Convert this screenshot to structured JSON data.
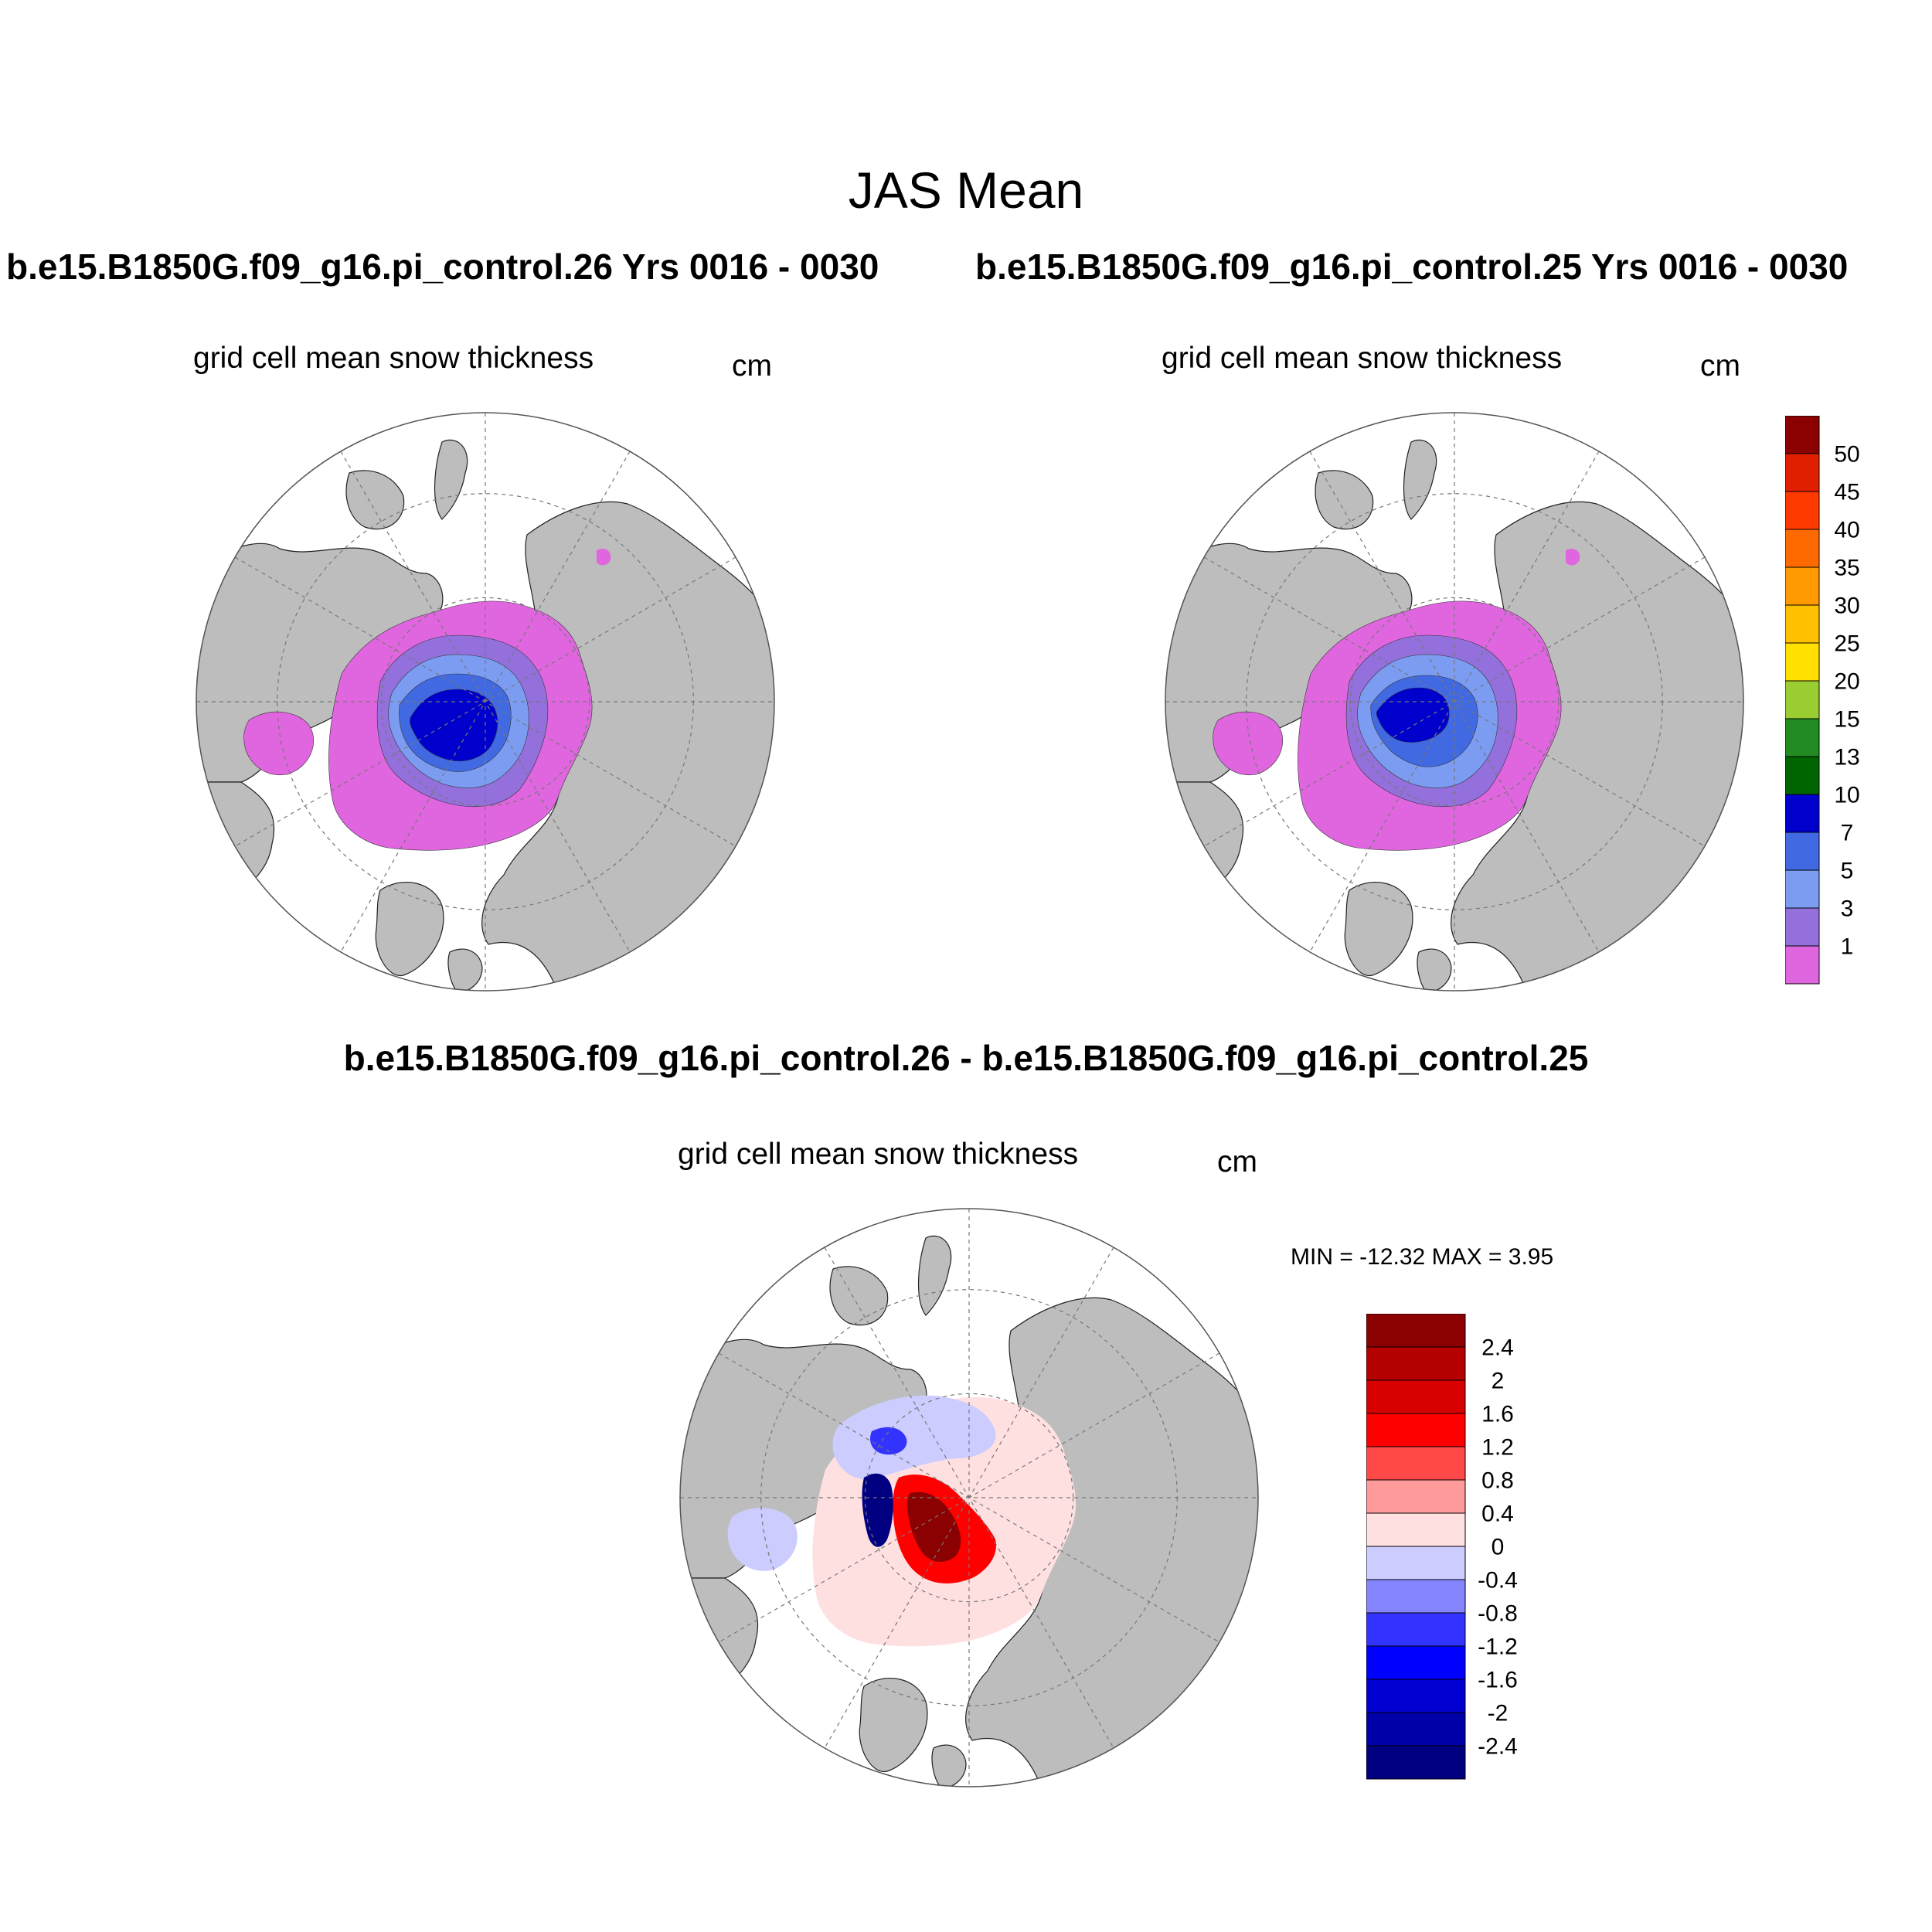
{
  "figure": {
    "title": "JAS Mean",
    "case1_title": "b.e15.B1850G.f09_g16.pi_control.26  Yrs 0016 - 0030",
    "case2_title": "b.e15.B1850G.f09_g16.pi_control.25  Yrs 0016 - 0030",
    "diff_title": "b.e15.B1850G.f09_g16.pi_control.26 - b.e15.B1850G.f09_g16.pi_control.25"
  },
  "panels": {
    "case1": {
      "variable": "grid cell mean snow thickness",
      "units": "cm"
    },
    "case2": {
      "variable": "grid cell mean snow thickness",
      "units": "cm"
    },
    "diff": {
      "variable": "grid cell mean snow thickness",
      "units": "cm",
      "minmax": "MIN = -12.32 MAX =   3.95"
    }
  },
  "map": {
    "projection": "north-polar-stereographic",
    "land_color": "#bdbdbd",
    "ocean_color": "#ffffff",
    "grid": "dashed"
  },
  "colorbar_abs": {
    "labels": [
      "1",
      "3",
      "5",
      "7",
      "10",
      "13",
      "15",
      "20",
      "25",
      "30",
      "35",
      "40",
      "45",
      "50"
    ],
    "colors": [
      "#e066e0",
      "#9370db",
      "#7b9cf0",
      "#4169e1",
      "#0000cd",
      "#006400",
      "#228b22",
      "#9acd32",
      "#ffe000",
      "#ffc000",
      "#ff9a00",
      "#ff6a00",
      "#ff3a00",
      "#e02000",
      "#8b0000"
    ]
  },
  "colorbar_diff": {
    "labels": [
      "-2.4",
      "-2",
      "-1.6",
      "-1.2",
      "-0.8",
      "-0.4",
      "0",
      "0.4",
      "0.8",
      "1.2",
      "1.6",
      "2",
      "2.4"
    ],
    "colors": [
      "#000080",
      "#0000a8",
      "#0000d0",
      "#0000ff",
      "#3333ff",
      "#8585ff",
      "#ccccff",
      "#ffe0e0",
      "#ff9a9a",
      "#ff4848",
      "#ff0000",
      "#d80000",
      "#b40000",
      "#8b0000"
    ]
  }
}
